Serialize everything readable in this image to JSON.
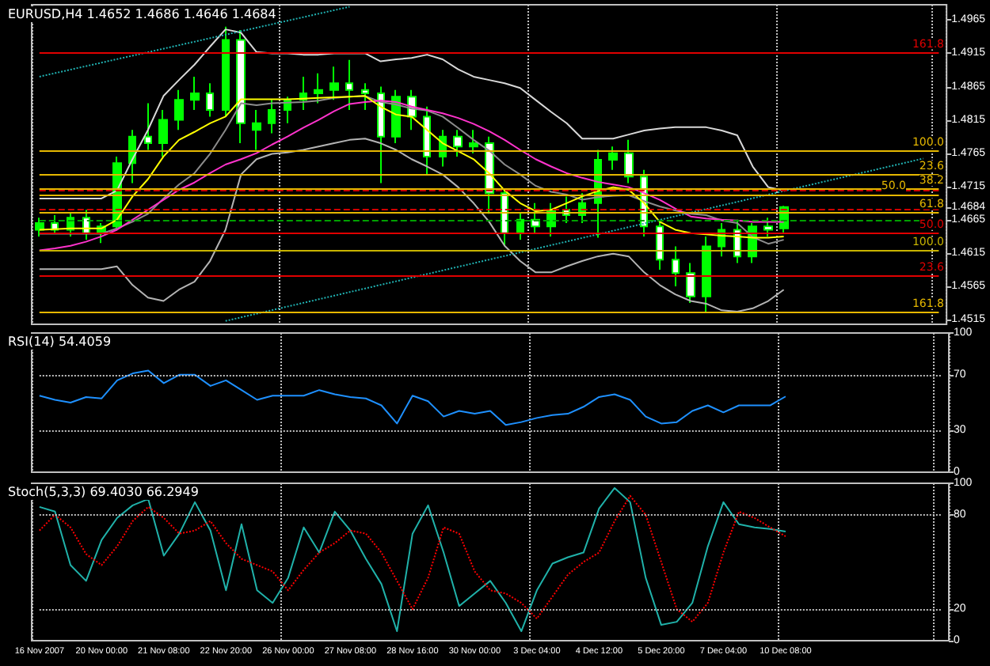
{
  "chart_data": [
    {
      "type": "candlestick",
      "title": "EURUSD,H4 1.4652 1.4686 1.4646 1.4684",
      "color": "#00ff00",
      "marker": "none",
      "grid": "x",
      "tick_labels": "y",
      "categories": [
        null,
        null,
        null,
        null,
        null,
        null,
        null,
        null,
        null,
        null,
        null,
        null,
        null,
        null,
        null,
        null,
        null,
        null,
        null,
        null,
        null,
        null,
        null,
        null,
        null,
        null,
        null,
        null,
        null,
        null,
        null,
        null,
        null,
        null,
        null,
        null,
        null,
        null,
        null,
        null,
        null,
        null,
        null,
        null,
        null,
        null,
        null,
        null,
        null,
        null,
        null,
        null,
        null,
        null,
        null,
        null,
        null,
        null,
        null
      ],
      "ohlc": [
        [
          1.465,
          1.4668,
          1.464,
          1.466
        ],
        [
          1.466,
          1.4672,
          1.4645,
          1.465
        ],
        [
          1.465,
          1.4675,
          1.464,
          1.4668
        ],
        [
          1.4668,
          1.468,
          1.4635,
          1.4645
        ],
        [
          1.4645,
          1.466,
          1.463,
          1.4655
        ],
        [
          1.4655,
          1.476,
          1.465,
          1.475
        ],
        [
          1.475,
          1.48,
          1.472,
          1.479
        ],
        [
          1.479,
          1.484,
          1.477,
          1.478
        ],
        [
          1.478,
          1.483,
          1.476,
          1.4815
        ],
        [
          1.4815,
          1.486,
          1.48,
          1.4845
        ],
        [
          1.4845,
          1.488,
          1.483,
          1.4855
        ],
        [
          1.4855,
          1.487,
          1.482,
          1.483
        ],
        [
          1.483,
          1.4955,
          1.482,
          1.4935
        ],
        [
          1.4935,
          1.495,
          1.478,
          1.481
        ],
        [
          1.48,
          1.483,
          1.477,
          1.481
        ],
        [
          1.481,
          1.4845,
          1.4795,
          1.483
        ],
        [
          1.483,
          1.485,
          1.481,
          1.4845
        ],
        [
          1.4845,
          1.488,
          1.483,
          1.4855
        ],
        [
          1.4855,
          1.4885,
          1.484,
          1.486
        ],
        [
          1.486,
          1.4895,
          1.4845,
          1.487
        ],
        [
          1.487,
          1.4905,
          1.483,
          1.486
        ],
        [
          1.486,
          1.487,
          1.483,
          1.4855
        ],
        [
          1.4855,
          1.4865,
          1.472,
          1.479
        ],
        [
          1.479,
          1.486,
          1.478,
          1.485
        ],
        [
          1.485,
          1.486,
          1.48,
          1.482
        ],
        [
          1.482,
          1.4835,
          1.4733,
          1.476
        ],
        [
          1.476,
          1.48,
          1.4745,
          1.479
        ],
        [
          1.479,
          1.48,
          1.476,
          1.4775
        ],
        [
          1.4775,
          1.48,
          1.4765,
          1.478
        ],
        [
          1.478,
          1.479,
          1.4674,
          1.4705
        ],
        [
          1.4705,
          1.471,
          1.4626,
          1.4645
        ],
        [
          1.4645,
          1.4675,
          1.4635,
          1.4665
        ],
        [
          1.4665,
          1.469,
          1.4645,
          1.4655
        ],
        [
          1.4655,
          1.469,
          1.464,
          1.468
        ],
        [
          1.468,
          1.47,
          1.466,
          1.4672
        ],
        [
          1.4672,
          1.4705,
          1.466,
          1.469
        ],
        [
          1.469,
          1.477,
          1.4638,
          1.4755
        ],
        [
          1.4755,
          1.4775,
          1.474,
          1.4765
        ],
        [
          1.4765,
          1.4785,
          1.472,
          1.473
        ],
        [
          1.473,
          1.474,
          1.464,
          1.4655
        ],
        [
          1.4655,
          1.4665,
          1.459,
          1.4605
        ],
        [
          1.4605,
          1.4625,
          1.4565,
          1.4585
        ],
        [
          1.4585,
          1.46,
          1.454,
          1.455
        ],
        [
          1.455,
          1.464,
          1.4527,
          1.4625
        ],
        [
          1.4625,
          1.466,
          1.461,
          1.465
        ],
        [
          1.465,
          1.4665,
          1.46,
          1.461
        ],
        [
          1.461,
          1.466,
          1.46,
          1.4655
        ],
        [
          1.4655,
          1.4668,
          1.464,
          1.465
        ],
        [
          1.4652,
          1.4686,
          1.4646,
          1.4684
        ],
        null,
        null,
        null,
        null,
        null,
        null,
        null,
        null,
        null,
        null
      ],
      "series": [
        {
          "type": "line",
          "color": "#d8d8d8",
          "values": [
            1.4697,
            1.4697,
            1.4697,
            1.4697,
            1.4697,
            1.4709,
            1.4756,
            1.48,
            1.4851,
            1.4875,
            1.4898,
            1.4925,
            1.4951,
            1.4946,
            1.4917,
            1.4915,
            1.4915,
            1.4913,
            1.4913,
            1.4915,
            1.4915,
            1.4915,
            1.4903,
            1.4906,
            1.4908,
            1.4913,
            1.4906,
            1.4891,
            1.488,
            1.4875,
            1.487,
            1.4863,
            1.4845,
            1.4827,
            1.481,
            1.4787,
            1.4787,
            1.4787,
            1.4793,
            1.4799,
            1.4802,
            1.4804,
            1.4804,
            1.4804,
            1.4799,
            1.4792,
            1.4745,
            1.4714,
            1.4709,
            null,
            null,
            null,
            null,
            null,
            null,
            null,
            null,
            null,
            null
          ]
        },
        {
          "type": "line",
          "color": "#8c8c8c",
          "values": [
            1.4644,
            1.4644,
            1.4644,
            1.4644,
            1.4644,
            1.4652,
            1.4662,
            1.4674,
            1.4697,
            1.4718,
            1.4735,
            1.4764,
            1.48,
            1.484,
            1.4837,
            1.484,
            1.4841,
            1.4842,
            1.4844,
            1.4848,
            1.485,
            1.4851,
            1.4842,
            1.4838,
            1.4832,
            1.4829,
            1.482,
            1.4803,
            1.4785,
            1.4769,
            1.4748,
            1.4733,
            1.4716,
            1.4707,
            1.4703,
            1.4695,
            1.4699,
            1.4701,
            1.4702,
            1.4693,
            1.4685,
            1.4679,
            1.4674,
            1.4672,
            1.4664,
            1.466,
            1.4639,
            1.4629,
            1.4635,
            null,
            null,
            null,
            null,
            null,
            null,
            null,
            null,
            null,
            null
          ]
        },
        {
          "type": "line",
          "color": "#b4b4b4",
          "values": [
            1.4591,
            1.4591,
            1.4591,
            1.4591,
            1.4591,
            1.4595,
            1.4567,
            1.4548,
            1.4543,
            1.456,
            1.4572,
            1.4603,
            1.465,
            1.4733,
            1.4756,
            1.4764,
            1.4766,
            1.477,
            1.4775,
            1.478,
            1.4785,
            1.4787,
            1.478,
            1.477,
            1.4756,
            1.4745,
            1.4733,
            1.4714,
            1.469,
            1.4662,
            1.4626,
            1.4603,
            1.4586,
            1.4586,
            1.4595,
            1.4603,
            1.461,
            1.4614,
            1.461,
            1.4586,
            1.4567,
            1.4553,
            1.4543,
            1.4539,
            1.4529,
            1.4527,
            1.4532,
            1.4543,
            1.456,
            null,
            null,
            null,
            null,
            null,
            null,
            null,
            null,
            null,
            null
          ]
        },
        {
          "type": "line",
          "color": "#ff33cc",
          "values": [
            1.4619,
            1.4622,
            1.4626,
            1.4632,
            1.464,
            1.465,
            1.4665,
            1.468,
            1.4695,
            1.471,
            1.4721,
            1.4735,
            1.4748,
            1.4756,
            1.4765,
            1.4778,
            1.479,
            1.4803,
            1.4815,
            1.4828,
            1.4839,
            1.4842,
            1.4844,
            1.4842,
            1.4835,
            1.483,
            1.4825,
            1.4818,
            1.4809,
            1.4798,
            1.4785,
            1.477,
            1.4756,
            1.4745,
            1.4735,
            1.4728,
            1.4722,
            1.4718,
            1.4714,
            1.4705,
            1.4695,
            1.4682,
            1.467,
            1.4667,
            1.4665,
            1.4664,
            1.4662,
            1.4662,
            1.4662,
            null,
            null,
            null,
            null,
            null,
            null,
            null,
            null,
            null,
            null
          ]
        },
        {
          "type": "line",
          "color": "#ffff00",
          "values": [
            1.465,
            1.4651,
            1.4652,
            1.4652,
            1.4652,
            1.4665,
            1.47,
            1.4726,
            1.476,
            1.4785,
            1.4797,
            1.481,
            1.482,
            1.4846,
            1.4846,
            1.4846,
            1.4846,
            1.4847,
            1.4848,
            1.4849,
            1.485,
            1.4851,
            1.4835,
            1.4823,
            1.482,
            1.48,
            1.478,
            1.4768,
            1.4756,
            1.4735,
            1.4709,
            1.469,
            1.4678,
            1.468,
            1.469,
            1.47,
            1.4708,
            1.4714,
            1.471,
            1.469,
            1.4662,
            1.465,
            1.4645,
            1.4643,
            1.4641,
            1.464,
            1.4638,
            1.4638,
            1.464,
            null,
            null,
            null,
            null,
            null,
            null,
            null,
            null,
            null,
            null
          ]
        },
        {
          "type": "line",
          "color": "#20b2b2",
          "line_style": "dotted",
          "values": [
            1.488,
            null,
            null,
            null,
            null,
            null,
            null,
            null,
            null,
            null,
            null,
            null,
            null,
            null,
            null,
            null,
            null,
            null,
            null,
            null,
            1.4985,
            null,
            null,
            null,
            null,
            null,
            null,
            null,
            null,
            null,
            null,
            null,
            null,
            null,
            null,
            null,
            null,
            null,
            null,
            null,
            null,
            null,
            null,
            null,
            null,
            null,
            null,
            null,
            null,
            null,
            null,
            null,
            null,
            null,
            null,
            null,
            null,
            null,
            null
          ]
        },
        {
          "type": "line",
          "color": "#20b2b2",
          "line_style": "dotted",
          "values": [
            null,
            null,
            null,
            null,
            null,
            null,
            null,
            null,
            null,
            null,
            null,
            null,
            1.4513,
            null,
            null,
            null,
            null,
            null,
            null,
            null,
            null,
            null,
            null,
            null,
            null,
            null,
            null,
            null,
            null,
            null,
            null,
            null,
            null,
            null,
            null,
            null,
            null,
            null,
            null,
            null,
            null,
            null,
            null,
            null,
            null,
            null,
            null,
            null,
            null,
            null,
            null,
            null,
            null,
            null,
            null,
            null,
            null,
            1.4757,
            null
          ]
        }
      ],
      "ylim": [
        1.4508,
        1.4988
      ],
      "yticks": [
        1.4515,
        1.4565,
        1.4615,
        1.4665,
        {
          "value": 1.4684,
          "label": "1.4684"
        },
        1.4715,
        1.4765,
        1.4815,
        1.4865,
        1.4915,
        1.4965
      ],
      "ref_lines": [
        {
          "axis": "y",
          "value": 1.4916,
          "color": "#e00000"
        },
        {
          "axis": "y",
          "value": 1.4768,
          "color": "#e6b800"
        },
        {
          "axis": "y",
          "value": 1.4733,
          "color": "#e6b800"
        },
        {
          "axis": "y",
          "value": 1.4711,
          "color": "#e6b800"
        },
        {
          "axis": "y",
          "value": 1.4703,
          "color": "#e6b800"
        },
        {
          "axis": "y",
          "value": 1.4676,
          "color": "#e6b800"
        },
        {
          "axis": "y",
          "value": 1.4645,
          "color": "#e00000"
        },
        {
          "axis": "y",
          "value": 1.4618,
          "color": "#c8b400"
        },
        {
          "axis": "y",
          "value": 1.4581,
          "color": "#e00000"
        },
        {
          "axis": "y",
          "value": 1.4526,
          "color": "#e6b800"
        },
        {
          "axis": "y",
          "value": 1.4709,
          "color": "#d00000",
          "line_style": "dashed"
        },
        {
          "axis": "y",
          "value": 1.468,
          "color": "#d00000",
          "line_style": "dashed"
        },
        {
          "axis": "y",
          "value": 1.4664,
          "color": "#00a000",
          "line_style": "dashed"
        }
      ],
      "annotations": [
        {
          "text": "161.8",
          "y": 1.4916
        },
        {
          "text": "100.0",
          "y": 1.4768
        },
        {
          "text": "23.6",
          "y": 1.4733
        },
        {
          "text": "38.2",
          "y": 1.4711
        },
        {
          "text": "50.0",
          "y": 1.4703
        },
        {
          "text": "61.8",
          "y": 1.4676
        },
        {
          "text": "50.0",
          "y": 1.4645
        },
        {
          "text": "100.0",
          "y": 1.4618
        },
        {
          "text": "23.6",
          "y": 1.4581
        },
        {
          "text": "161.8",
          "y": 1.4526
        }
      ]
    },
    {
      "type": "line",
      "title": "RSI(14) 54.4059",
      "marker": "none",
      "grid": "x",
      "tick_labels": "y",
      "categories": [
        null,
        null,
        null,
        null,
        null,
        null,
        null,
        null,
        null,
        null,
        null,
        null,
        null,
        null,
        null,
        null,
        null,
        null,
        null,
        null,
        null,
        null,
        null,
        null,
        null,
        null,
        null,
        null,
        null,
        null,
        null,
        null,
        null,
        null,
        null,
        null,
        null,
        null,
        null,
        null,
        null,
        null,
        null,
        null,
        null,
        null,
        null,
        null,
        null,
        null,
        null,
        null,
        null,
        null,
        null,
        null,
        null,
        null,
        null
      ],
      "series": [
        {
          "color": "#1e90ff",
          "values": [
            55,
            52,
            50,
            54,
            53,
            66,
            71,
            73,
            64,
            70,
            70,
            62,
            66,
            59,
            52,
            55,
            55,
            55,
            59,
            56,
            54,
            53,
            48,
            35,
            55,
            51,
            40,
            44,
            42,
            44,
            34,
            36,
            39,
            41,
            42,
            47,
            54,
            56,
            52,
            40,
            35,
            36,
            44,
            48,
            43,
            48,
            48,
            48,
            54.4,
            null,
            null,
            null,
            null,
            null,
            null,
            null,
            null,
            null,
            null
          ]
        }
      ],
      "ylim": [
        0,
        100
      ],
      "yticks": [
        0,
        30,
        70,
        100
      ],
      "ref_lines": [
        {
          "axis": "y",
          "value": 70,
          "color": "#c0c0c0",
          "line_style": "dotted"
        },
        {
          "axis": "y",
          "value": 30,
          "color": "#c0c0c0",
          "line_style": "dotted"
        }
      ]
    },
    {
      "type": "line",
      "title": "Stoch(5,3,3) 69.4030 66.2949",
      "marker": "none",
      "grid": "x",
      "categories": [
        "16 Nov 2007",
        null,
        null,
        null,
        "20 Nov 00:00",
        null,
        null,
        null,
        "21 Nov 08:00",
        null,
        null,
        null,
        "22 Nov 20:00",
        null,
        null,
        null,
        "26 Nov 00:00",
        null,
        null,
        null,
        "27 Nov 08:00",
        null,
        null,
        null,
        "28 Nov 16:00",
        null,
        null,
        null,
        "30 Nov 00:00",
        null,
        null,
        null,
        "3 Dec 04:00",
        null,
        null,
        null,
        "4 Dec 12:00",
        null,
        null,
        null,
        "5 Dec 20:00",
        null,
        null,
        null,
        "7 Dec 04:00",
        null,
        null,
        null,
        "10 Dec 08:00",
        null,
        null,
        null,
        null,
        null,
        null,
        null,
        null,
        null,
        null
      ],
      "series": [
        {
          "color": "#20b2aa",
          "values": [
            85,
            82,
            48,
            38,
            64,
            78,
            86,
            90,
            54,
            68,
            88,
            70,
            32,
            74,
            32,
            24,
            40,
            72,
            56,
            82,
            70,
            52,
            36,
            6,
            68,
            86,
            56,
            22,
            30,
            38,
            24,
            6,
            32,
            49,
            53,
            56,
            84,
            97,
            88,
            40,
            10,
            12,
            24,
            60,
            88,
            74,
            72,
            71,
            69.4,
            null,
            null,
            null,
            null,
            null,
            null,
            null,
            null,
            null,
            null
          ]
        },
        {
          "color": "#ff0000",
          "line_style": "dotted",
          "values": [
            70,
            80,
            72,
            55,
            48,
            60,
            76,
            85,
            78,
            68,
            70,
            76,
            62,
            52,
            48,
            44,
            32,
            45,
            56,
            62,
            70,
            68,
            56,
            38,
            20,
            40,
            72,
            68,
            44,
            32,
            30,
            24,
            14,
            28,
            42,
            50,
            56,
            76,
            92,
            80,
            50,
            20,
            12,
            24,
            56,
            82,
            78,
            72,
            66.3,
            null,
            null,
            null,
            null,
            null,
            null,
            null,
            null,
            null,
            null
          ]
        }
      ],
      "ylim": [
        0,
        100
      ],
      "yticks": [
        0,
        20,
        80,
        100
      ],
      "ref_lines": [
        {
          "axis": "y",
          "value": 80,
          "color": "#c0c0c0",
          "line_style": "dotted"
        },
        {
          "axis": "y",
          "value": 20,
          "color": "#c0c0c0",
          "line_style": "dotted"
        }
      ]
    }
  ]
}
